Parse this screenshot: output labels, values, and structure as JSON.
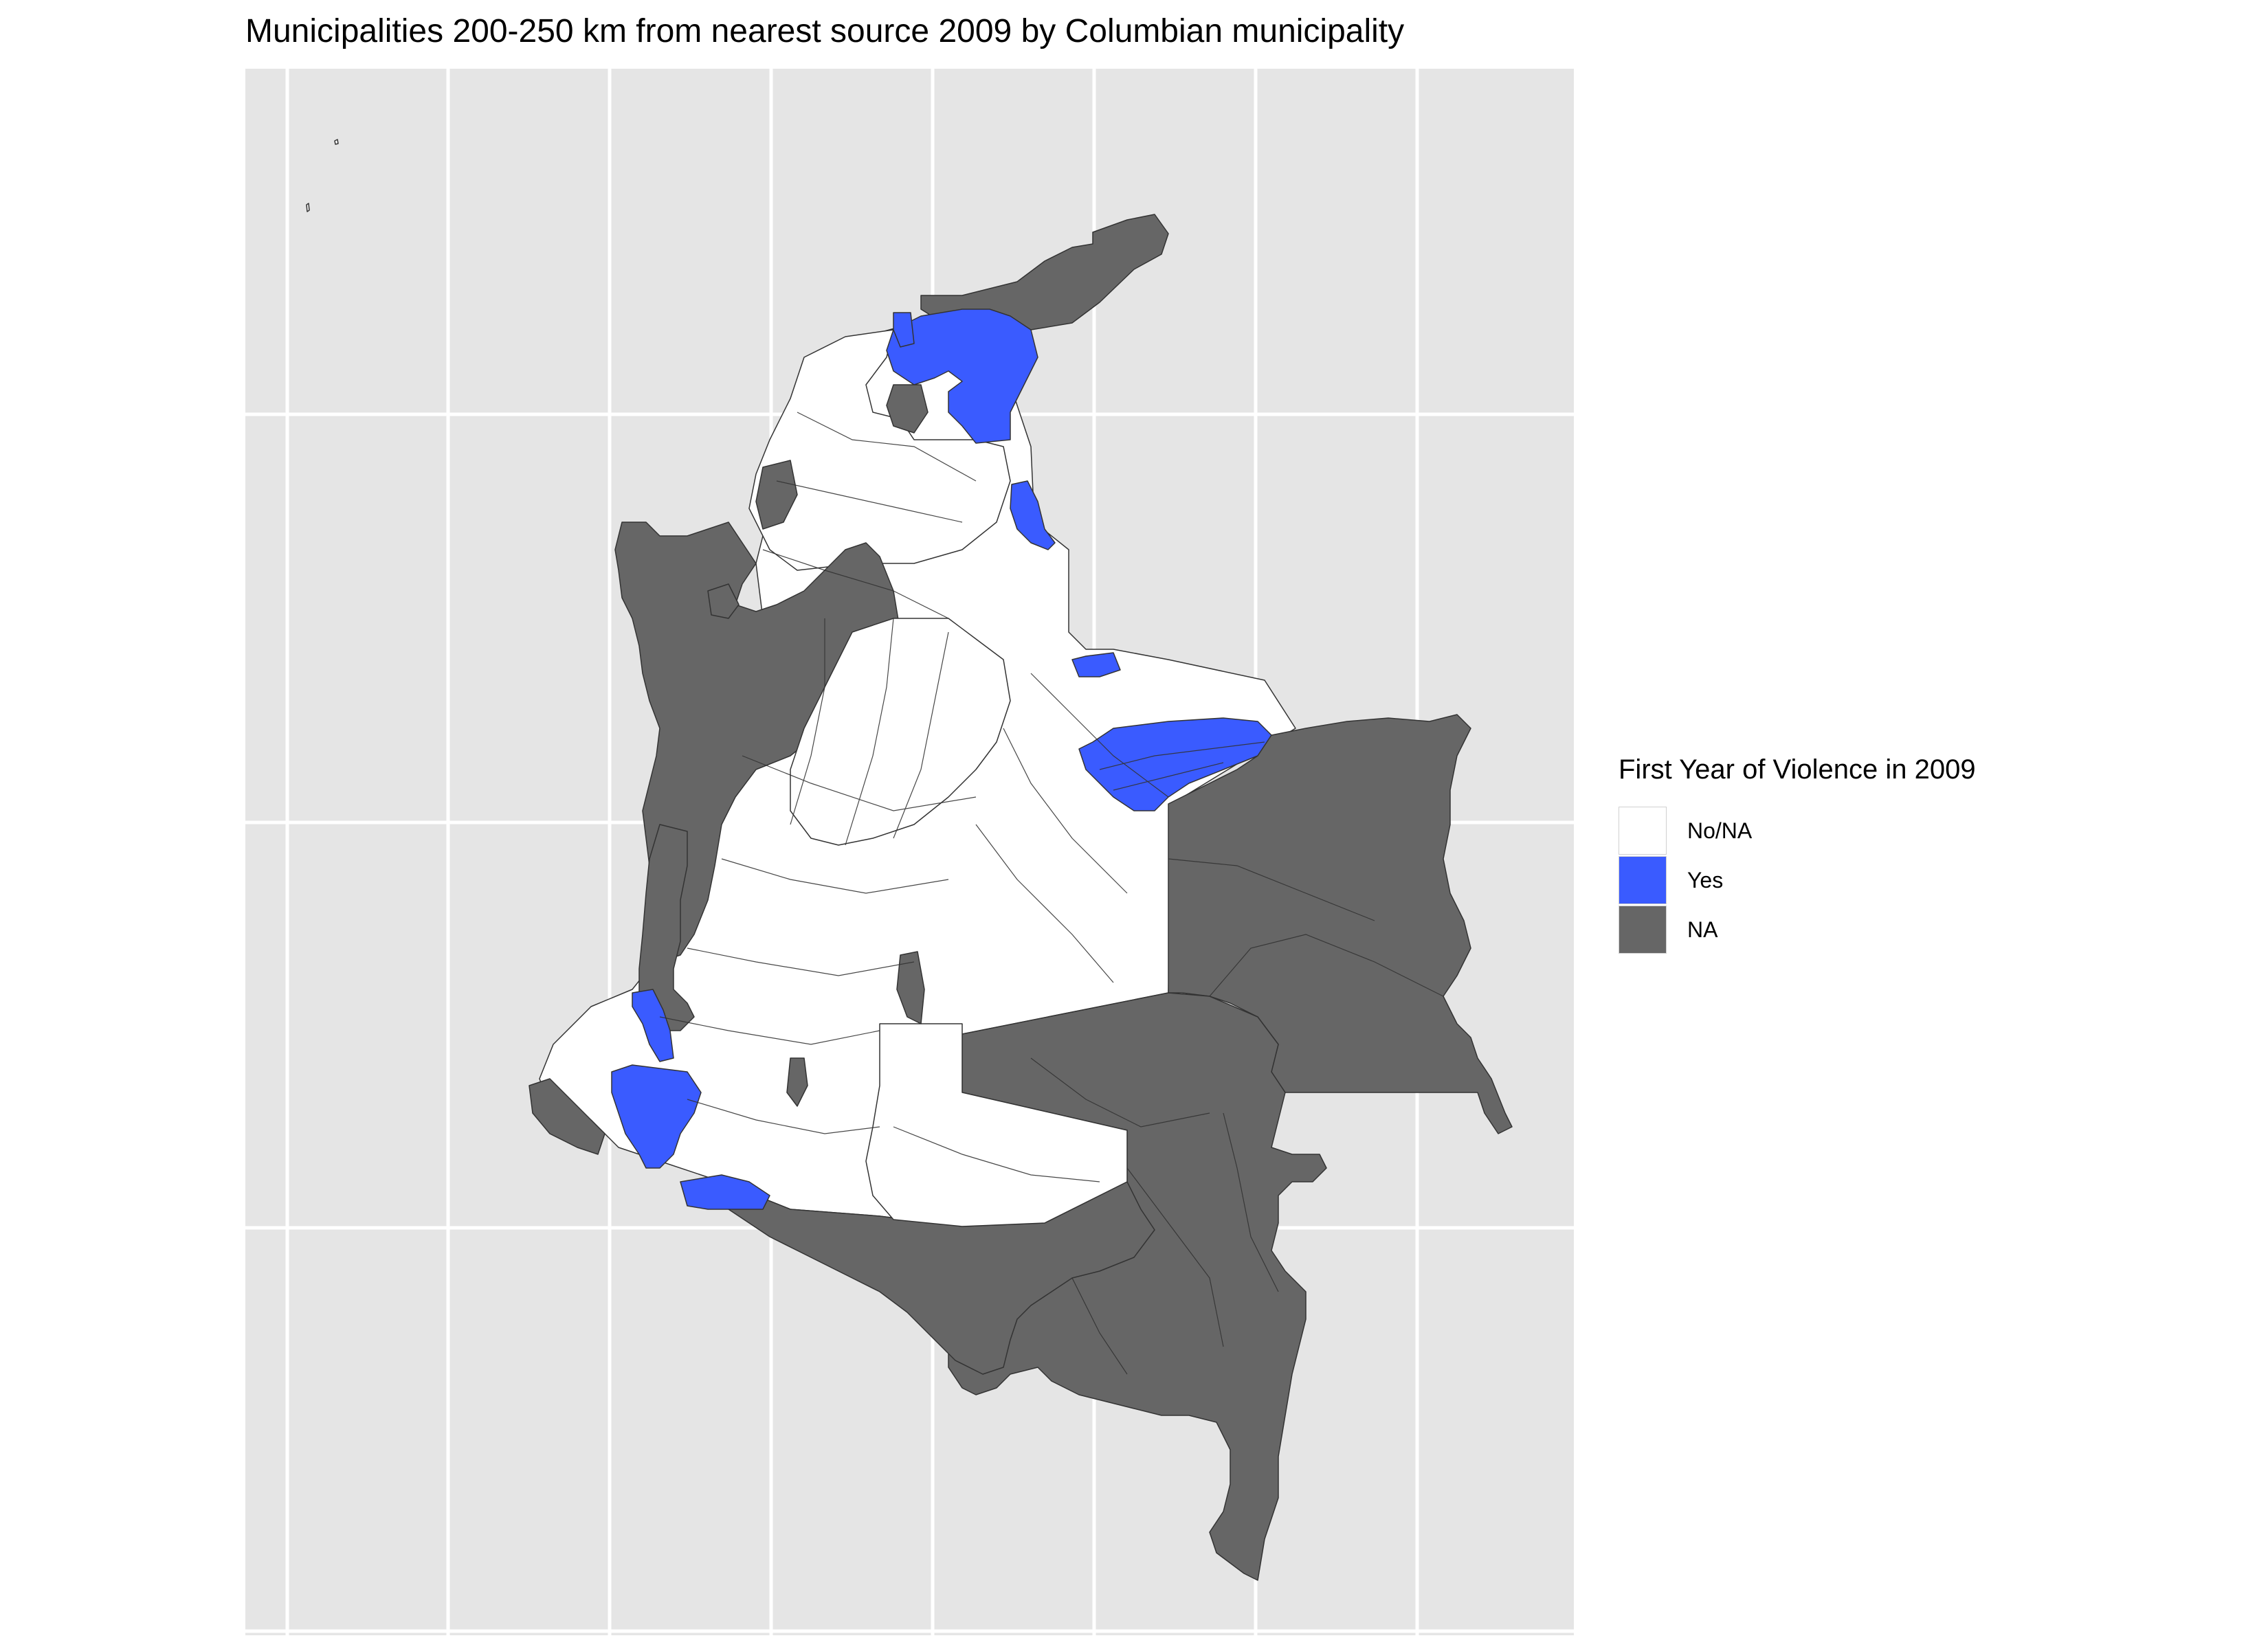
{
  "title": "Municipalities 200-250 km from nearest source 2009 by Columbian municipality",
  "legend": {
    "title": "First Year of Violence in 2009",
    "items": [
      {
        "label": "No/NA",
        "color": "#ffffff"
      },
      {
        "label": "Yes",
        "color": "#3a5bff"
      },
      {
        "label": "NA",
        "color": "#666666"
      }
    ]
  },
  "colors": {
    "panel_background": "#e5e5e5",
    "grid": "#ffffff",
    "boundary": "#333333"
  }
}
